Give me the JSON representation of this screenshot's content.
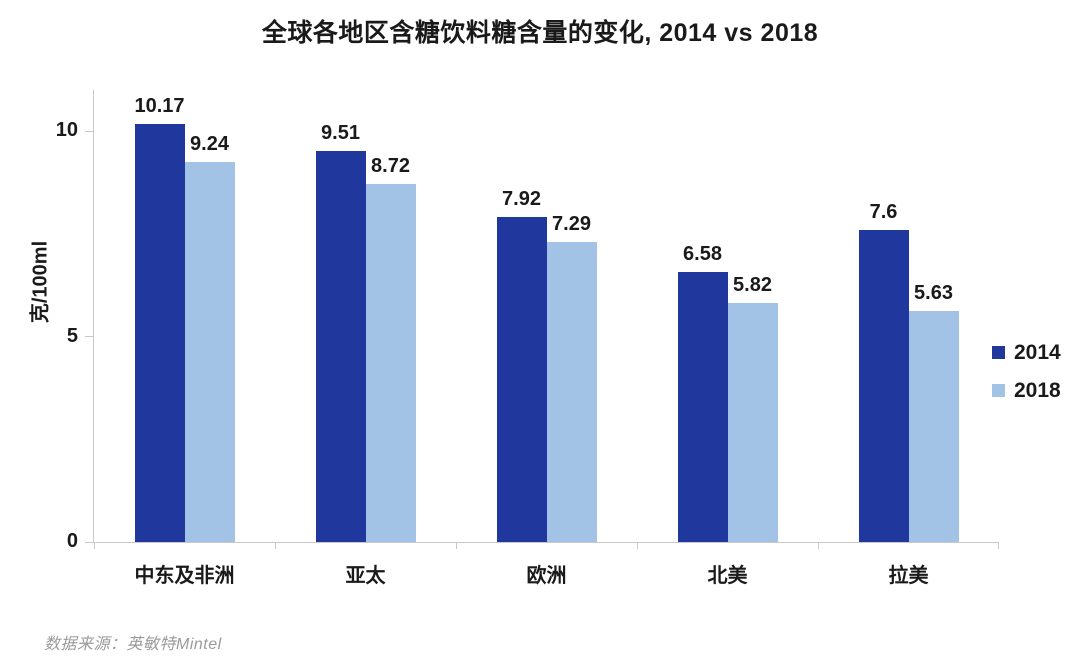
{
  "title": "全球各地区含糖饮料糖含量的变化, 2014 vs 2018",
  "source": "数据来源：英敏特Mintel",
  "colors": {
    "bar_2014": "#20389D",
    "bar_2018": "#A2C3E6",
    "axis": "#C9C9C9",
    "text": "#1A1A1A",
    "source_text": "#9B9B9B"
  },
  "chart_data": {
    "type": "bar",
    "title": "全球各地区含糖饮料糖含量的变化, 2014 vs 2018",
    "xlabel": "",
    "ylabel": "克/100ml",
    "categories": [
      "中东及非洲",
      "亚太",
      "欧洲",
      "北美",
      "拉美"
    ],
    "series": [
      {
        "name": "2014",
        "color": "#20389D",
        "values": [
          10.17,
          9.51,
          7.92,
          6.58,
          7.6
        ]
      },
      {
        "name": "2018",
        "color": "#A2C3E6",
        "values": [
          9.24,
          8.72,
          7.29,
          5.82,
          5.63
        ]
      }
    ],
    "yticks": [
      0,
      5,
      10
    ],
    "yticklabels": [
      "0",
      "5",
      "10"
    ],
    "ylim": [
      0,
      11
    ],
    "grid": false,
    "legend": {
      "position": "right",
      "labels": [
        "2014",
        "2018"
      ]
    }
  }
}
